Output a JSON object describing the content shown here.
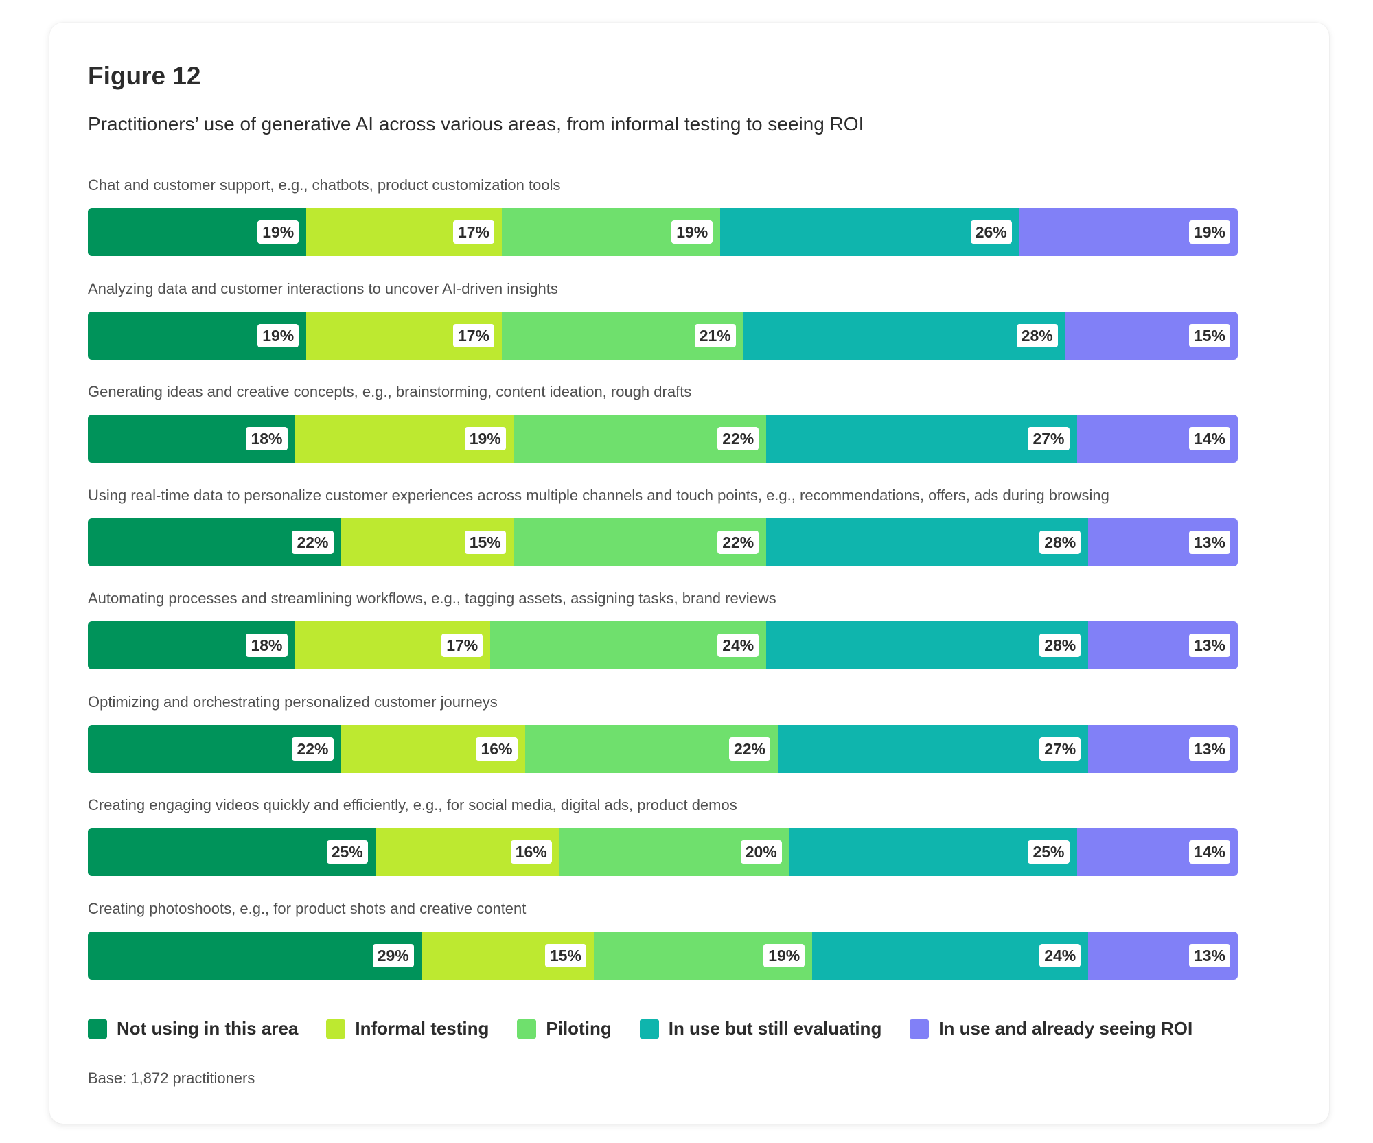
{
  "header": {
    "figure_label": "Figure 12",
    "subtitle": "Practitioners’ use of generative AI across various areas, from informal testing to seeing ROI"
  },
  "footer": {
    "base_note": "Base: 1,872 practitioners"
  },
  "colors": {
    "Not using in this area": "#00935a",
    "Informal testing": "#bde930",
    "Piloting": "#6fe06d",
    "In use but still evaluating": "#0fb5ad",
    "In use and already seeing ROI": "#8180f7"
  },
  "chart_data": {
    "type": "bar",
    "orientation": "horizontal",
    "stacked": true,
    "normalized": true,
    "title": "Figure 12",
    "subtitle": "Practitioners’ use of generative AI across various areas, from informal testing to seeing ROI",
    "categories": [
      "Chat and customer support, e.g., chatbots, product customization tools",
      "Analyzing data and customer interactions to uncover AI-driven insights",
      "Generating ideas and creative concepts, e.g., brainstorming, content ideation, rough drafts",
      "Using real-time data to personalize customer experiences across multiple channels and touch points, e.g., recommendations, offers, ads during browsing",
      "Automating processes and streamlining workflows, e.g., tagging assets, assigning tasks, brand reviews",
      "Optimizing and orchestrating personalized customer journeys",
      "Creating engaging videos quickly and efficiently, e.g., for social media, digital ads, product demos",
      "Creating photoshoots, e.g., for product shots and creative content"
    ],
    "series": [
      {
        "name": "Not using in this area",
        "values": [
          19,
          19,
          18,
          22,
          18,
          22,
          25,
          29
        ]
      },
      {
        "name": "Informal testing",
        "values": [
          17,
          17,
          19,
          15,
          17,
          16,
          16,
          15
        ]
      },
      {
        "name": "Piloting",
        "values": [
          19,
          21,
          22,
          22,
          24,
          22,
          20,
          19
        ]
      },
      {
        "name": "In use but still evaluating",
        "values": [
          26,
          28,
          27,
          28,
          28,
          27,
          25,
          24
        ]
      },
      {
        "name": "In use and already seeing ROI",
        "values": [
          19,
          15,
          14,
          13,
          13,
          13,
          14,
          13
        ]
      }
    ],
    "value_suffix": "%",
    "legend_position": "bottom-left",
    "grid": false
  }
}
